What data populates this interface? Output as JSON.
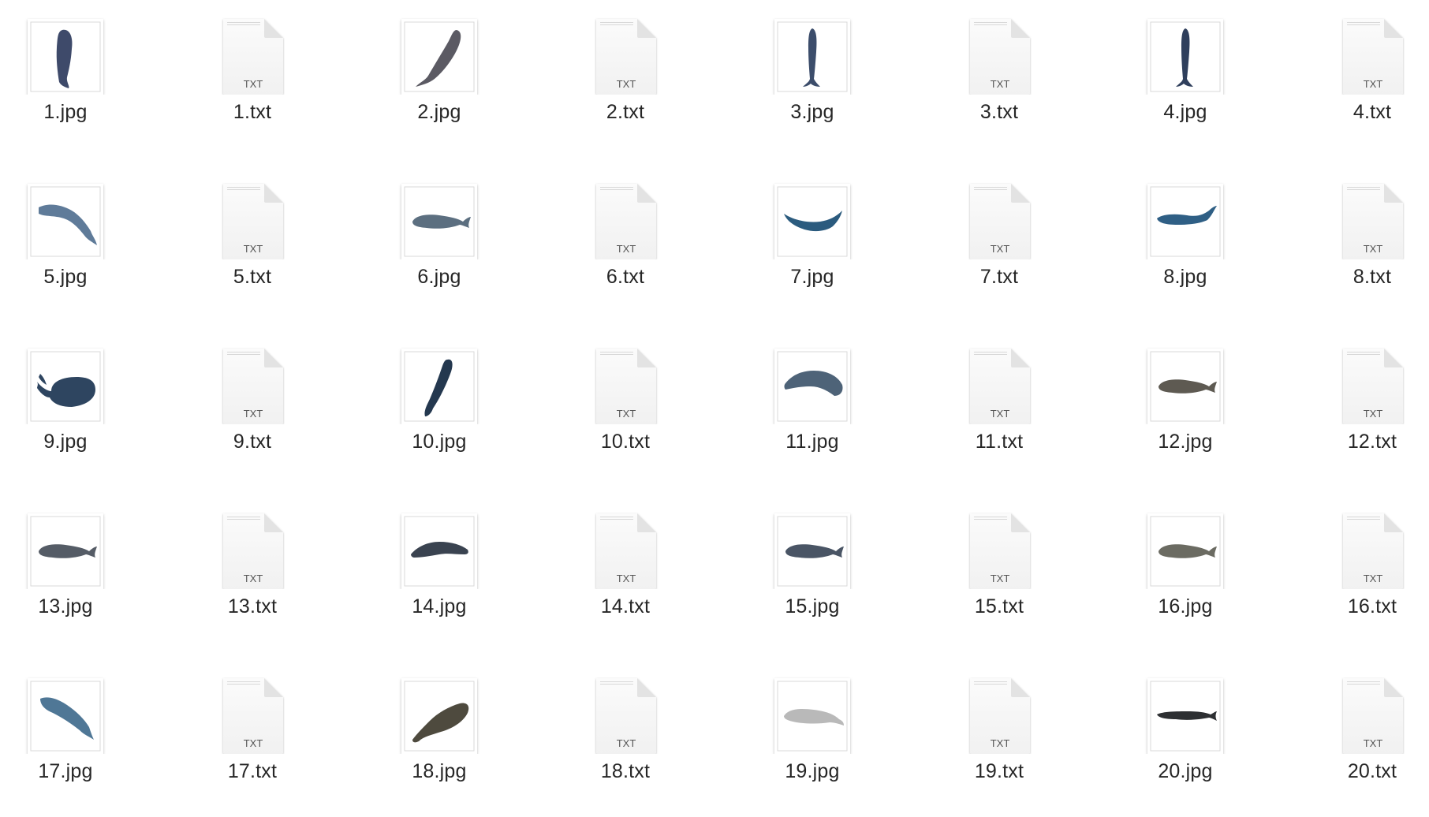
{
  "window": {
    "view": "icon-view"
  },
  "colors": {
    "txt_badge": "#555555",
    "label": "#262626",
    "frame_border": "#d9d9d9"
  },
  "files": [
    {
      "name": "1.jpg",
      "kind": "image",
      "whale": "sperm-whale-vertical-head-up-icon",
      "color": "#3e4a6a"
    },
    {
      "name": "1.txt",
      "kind": "text",
      "badge": "TXT"
    },
    {
      "name": "2.jpg",
      "kind": "image",
      "whale": "sperm-whale-diagonal-icon",
      "color": "#5b5a63"
    },
    {
      "name": "2.txt",
      "kind": "text",
      "badge": "TXT"
    },
    {
      "name": "3.jpg",
      "kind": "image",
      "whale": "sperm-whale-vertical-thin-icon",
      "color": "#3c4d6b"
    },
    {
      "name": "3.txt",
      "kind": "text",
      "badge": "TXT"
    },
    {
      "name": "4.jpg",
      "kind": "image",
      "whale": "sperm-whale-vertical-thin-icon",
      "color": "#2f3f5c"
    },
    {
      "name": "4.txt",
      "kind": "text",
      "badge": "TXT"
    },
    {
      "name": "5.jpg",
      "kind": "image",
      "whale": "sperm-whale-curved-icon",
      "color": "#5f7b99"
    },
    {
      "name": "5.txt",
      "kind": "text",
      "badge": "TXT"
    },
    {
      "name": "6.jpg",
      "kind": "image",
      "whale": "sperm-whale-horizontal-icon",
      "color": "#5c6f80"
    },
    {
      "name": "6.txt",
      "kind": "text",
      "badge": "TXT"
    },
    {
      "name": "7.jpg",
      "kind": "image",
      "whale": "sperm-whale-banana-icon",
      "color": "#2b5b7e"
    },
    {
      "name": "7.txt",
      "kind": "text",
      "badge": "TXT"
    },
    {
      "name": "8.jpg",
      "kind": "image",
      "whale": "sperm-whale-horizontal-tail-up-icon",
      "color": "#2f5f85"
    },
    {
      "name": "8.txt",
      "kind": "text",
      "badge": "TXT"
    },
    {
      "name": "9.jpg",
      "kind": "image",
      "whale": "sperm-whale-large-head-right-icon",
      "color": "#2e4560"
    },
    {
      "name": "9.txt",
      "kind": "text",
      "badge": "TXT"
    },
    {
      "name": "10.jpg",
      "kind": "image",
      "whale": "sperm-whale-diagonal-thin-icon",
      "color": "#24384f"
    },
    {
      "name": "10.txt",
      "kind": "text",
      "badge": "TXT"
    },
    {
      "name": "11.jpg",
      "kind": "image",
      "whale": "sperm-whale-arched-icon",
      "color": "#4e6378"
    },
    {
      "name": "11.txt",
      "kind": "text",
      "badge": "TXT"
    },
    {
      "name": "12.jpg",
      "kind": "image",
      "whale": "sperm-whale-horizontal-icon",
      "color": "#5e5a52"
    },
    {
      "name": "12.txt",
      "kind": "text",
      "badge": "TXT"
    },
    {
      "name": "13.jpg",
      "kind": "image",
      "whale": "sperm-whale-horizontal-icon",
      "color": "#555c66"
    },
    {
      "name": "13.txt",
      "kind": "text",
      "badge": "TXT"
    },
    {
      "name": "14.jpg",
      "kind": "image",
      "whale": "sperm-whale-swimming-icon",
      "color": "#3a4350"
    },
    {
      "name": "14.txt",
      "kind": "text",
      "badge": "TXT"
    },
    {
      "name": "15.jpg",
      "kind": "image",
      "whale": "sperm-whale-horizontal-icon",
      "color": "#4a5565"
    },
    {
      "name": "15.txt",
      "kind": "text",
      "badge": "TXT"
    },
    {
      "name": "16.jpg",
      "kind": "image",
      "whale": "sperm-whale-horizontal-icon",
      "color": "#6b6b62"
    },
    {
      "name": "16.txt",
      "kind": "text",
      "badge": "TXT"
    },
    {
      "name": "17.jpg",
      "kind": "image",
      "whale": "sperm-whale-diagonal-down-icon",
      "color": "#4f7796"
    },
    {
      "name": "17.txt",
      "kind": "text",
      "badge": "TXT"
    },
    {
      "name": "18.jpg",
      "kind": "image",
      "whale": "sperm-whale-diagonal-up-icon",
      "color": "#4e4a3e"
    },
    {
      "name": "18.txt",
      "kind": "text",
      "badge": "TXT"
    },
    {
      "name": "19.jpg",
      "kind": "image",
      "whale": "sperm-whale-horizontal-pale-icon",
      "color": "#b9b9b9"
    },
    {
      "name": "19.txt",
      "kind": "text",
      "badge": "TXT"
    },
    {
      "name": "20.jpg",
      "kind": "image",
      "whale": "sperm-whale-horizontal-dark-icon",
      "color": "#2d2f32"
    },
    {
      "name": "20.txt",
      "kind": "text",
      "badge": "TXT"
    }
  ]
}
